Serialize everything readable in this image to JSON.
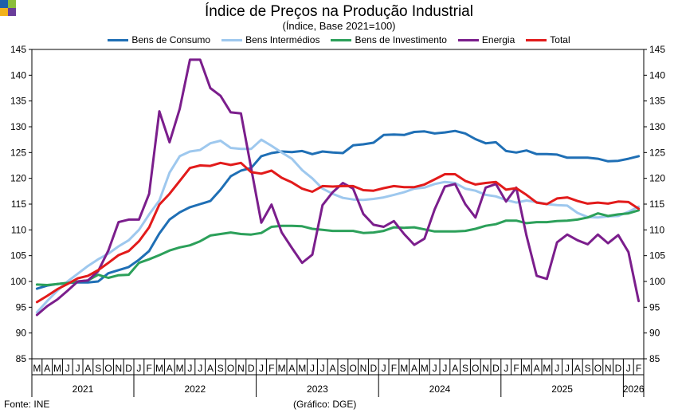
{
  "title": "Índice de Preços na Produção Industrial",
  "subtitle": "(Índice, Base 2021=100)",
  "footer": {
    "source": "Fonte: INE",
    "credit": "(Gráfico: DGE)"
  },
  "logo_colors": [
    "#1f5fa8",
    "#8bbd3c",
    "#f2b21b",
    "#6a3d9a"
  ],
  "chart_data": {
    "type": "line",
    "title": "Índice de Preços na Produção Industrial",
    "subtitle": "(Índice, Base 2021=100)",
    "ylim": [
      85,
      145
    ],
    "yticks": [
      85,
      90,
      95,
      100,
      105,
      110,
      115,
      120,
      125,
      130,
      135,
      140,
      145
    ],
    "grid": false,
    "legend_position": "top",
    "x": [
      "M",
      "A",
      "M",
      "J",
      "J",
      "A",
      "S",
      "O",
      "N",
      "D",
      "J",
      "F",
      "M",
      "A",
      "M",
      "J",
      "J",
      "A",
      "S",
      "O",
      "N",
      "D",
      "J",
      "F",
      "M",
      "A",
      "M",
      "J",
      "J",
      "A",
      "S",
      "O",
      "N",
      "D",
      "J",
      "F",
      "M",
      "A",
      "M",
      "J",
      "J",
      "A",
      "S",
      "O",
      "N",
      "D",
      "J",
      "F",
      "M",
      "A",
      "M",
      "J",
      "J",
      "A",
      "S",
      "O",
      "N",
      "D",
      "J",
      "F"
    ],
    "years": [
      {
        "label": "2021",
        "start": 0,
        "end": 9
      },
      {
        "label": "2022",
        "start": 10,
        "end": 21
      },
      {
        "label": "2023",
        "start": 22,
        "end": 33
      },
      {
        "label": "2024",
        "start": 34,
        "end": 45
      },
      {
        "label": "2025",
        "start": 46,
        "end": 57
      },
      {
        "label": "2026",
        "start": 58,
        "end": 59
      }
    ],
    "series": [
      {
        "name": "Bens de Consumo",
        "color": "#1f6fb5",
        "values": [
          98.6,
          99.2,
          99.5,
          99.7,
          99.8,
          99.8,
          100.0,
          101.6,
          102.2,
          102.8,
          104.2,
          105.9,
          109.3,
          112.0,
          113.4,
          114.4,
          115.0,
          115.6,
          117.8,
          120.4,
          121.5,
          122.0,
          124.3,
          124.9,
          125.2,
          125.1,
          125.3,
          124.7,
          125.2,
          125.0,
          124.9,
          126.4,
          126.6,
          126.9,
          128.4,
          128.5,
          128.4,
          129.0,
          129.1,
          128.7,
          128.9,
          129.2,
          128.7,
          127.6,
          126.8,
          127.0,
          125.3,
          125.0,
          125.4,
          124.7,
          124.7,
          124.6,
          124.0,
          124.0,
          124.0,
          123.8,
          123.3,
          123.4,
          123.8,
          124.3
        ]
      },
      {
        "name": "Bens Intermédios",
        "color": "#9ec8ee",
        "values": [
          94.0,
          96.2,
          98.2,
          100.0,
          101.5,
          103.0,
          104.3,
          105.4,
          106.8,
          108.0,
          110.0,
          113.0,
          115.7,
          121.1,
          124.3,
          125.2,
          125.5,
          126.8,
          127.3,
          125.9,
          125.7,
          125.7,
          127.5,
          126.3,
          125.0,
          123.8,
          121.6,
          120.0,
          118.0,
          117.0,
          116.2,
          115.9,
          115.8,
          116.0,
          116.3,
          116.8,
          117.3,
          118.0,
          118.2,
          118.9,
          119.3,
          119.1,
          118.0,
          117.6,
          116.8,
          116.5,
          115.8,
          115.3,
          115.7,
          115.4,
          115.0,
          114.8,
          114.7,
          113.3,
          112.5,
          112.4,
          112.6,
          112.7,
          113.5,
          114.5
        ]
      },
      {
        "name": "Bens de Investimento",
        "color": "#2ca05a",
        "values": [
          99.4,
          99.3,
          99.5,
          99.7,
          100.0,
          100.2,
          101.3,
          100.7,
          101.2,
          101.3,
          103.6,
          104.3,
          105.1,
          106.0,
          106.6,
          107.0,
          107.8,
          108.9,
          109.2,
          109.5,
          109.2,
          109.1,
          109.4,
          110.6,
          110.8,
          110.8,
          110.7,
          110.2,
          110.0,
          109.8,
          109.8,
          109.8,
          109.4,
          109.5,
          109.8,
          110.5,
          110.4,
          110.5,
          110.1,
          109.7,
          109.7,
          109.7,
          109.8,
          110.2,
          110.8,
          111.1,
          111.8,
          111.8,
          111.3,
          111.5,
          111.5,
          111.7,
          111.8,
          112.0,
          112.4,
          113.2,
          112.7,
          113.0,
          113.2,
          113.8
        ]
      },
      {
        "name": "Energia",
        "color": "#7b1e8c",
        "values": [
          93.5,
          95.2,
          96.5,
          98.2,
          100.0,
          100.2,
          102.0,
          106.0,
          111.5,
          112.0,
          112.0,
          117.0,
          133.0,
          127.0,
          133.5,
          143.0,
          143.0,
          137.5,
          136.0,
          132.8,
          132.6,
          122.0,
          111.4,
          114.9,
          109.5,
          106.5,
          103.6,
          105.2,
          114.8,
          117.3,
          119.1,
          118.0,
          113.1,
          111.0,
          110.6,
          111.7,
          109.2,
          107.1,
          108.3,
          114.0,
          118.4,
          118.9,
          115.0,
          112.4,
          118.2,
          118.9,
          115.5,
          118.2,
          108.9,
          101.1,
          100.5,
          107.6,
          109.1,
          108.0,
          107.2,
          109.1,
          107.4,
          109.0,
          105.7,
          96.2
        ]
      },
      {
        "name": "Total",
        "color": "#e21b1b",
        "values": [
          96.0,
          97.2,
          98.5,
          99.5,
          100.6,
          101.1,
          102.2,
          103.6,
          105.1,
          105.9,
          107.8,
          110.5,
          114.9,
          117.0,
          119.5,
          122.0,
          122.5,
          122.4,
          123.0,
          122.6,
          123.0,
          121.2,
          120.9,
          121.5,
          120.1,
          119.2,
          118.0,
          117.4,
          118.5,
          118.4,
          118.5,
          118.5,
          117.7,
          117.6,
          118.1,
          118.5,
          118.3,
          118.3,
          118.8,
          119.8,
          120.8,
          120.8,
          119.5,
          118.8,
          119.1,
          119.3,
          117.8,
          118.1,
          116.8,
          115.3,
          115.0,
          116.1,
          116.3,
          115.6,
          115.1,
          115.3,
          115.1,
          115.5,
          115.4,
          114.1
        ]
      }
    ]
  }
}
